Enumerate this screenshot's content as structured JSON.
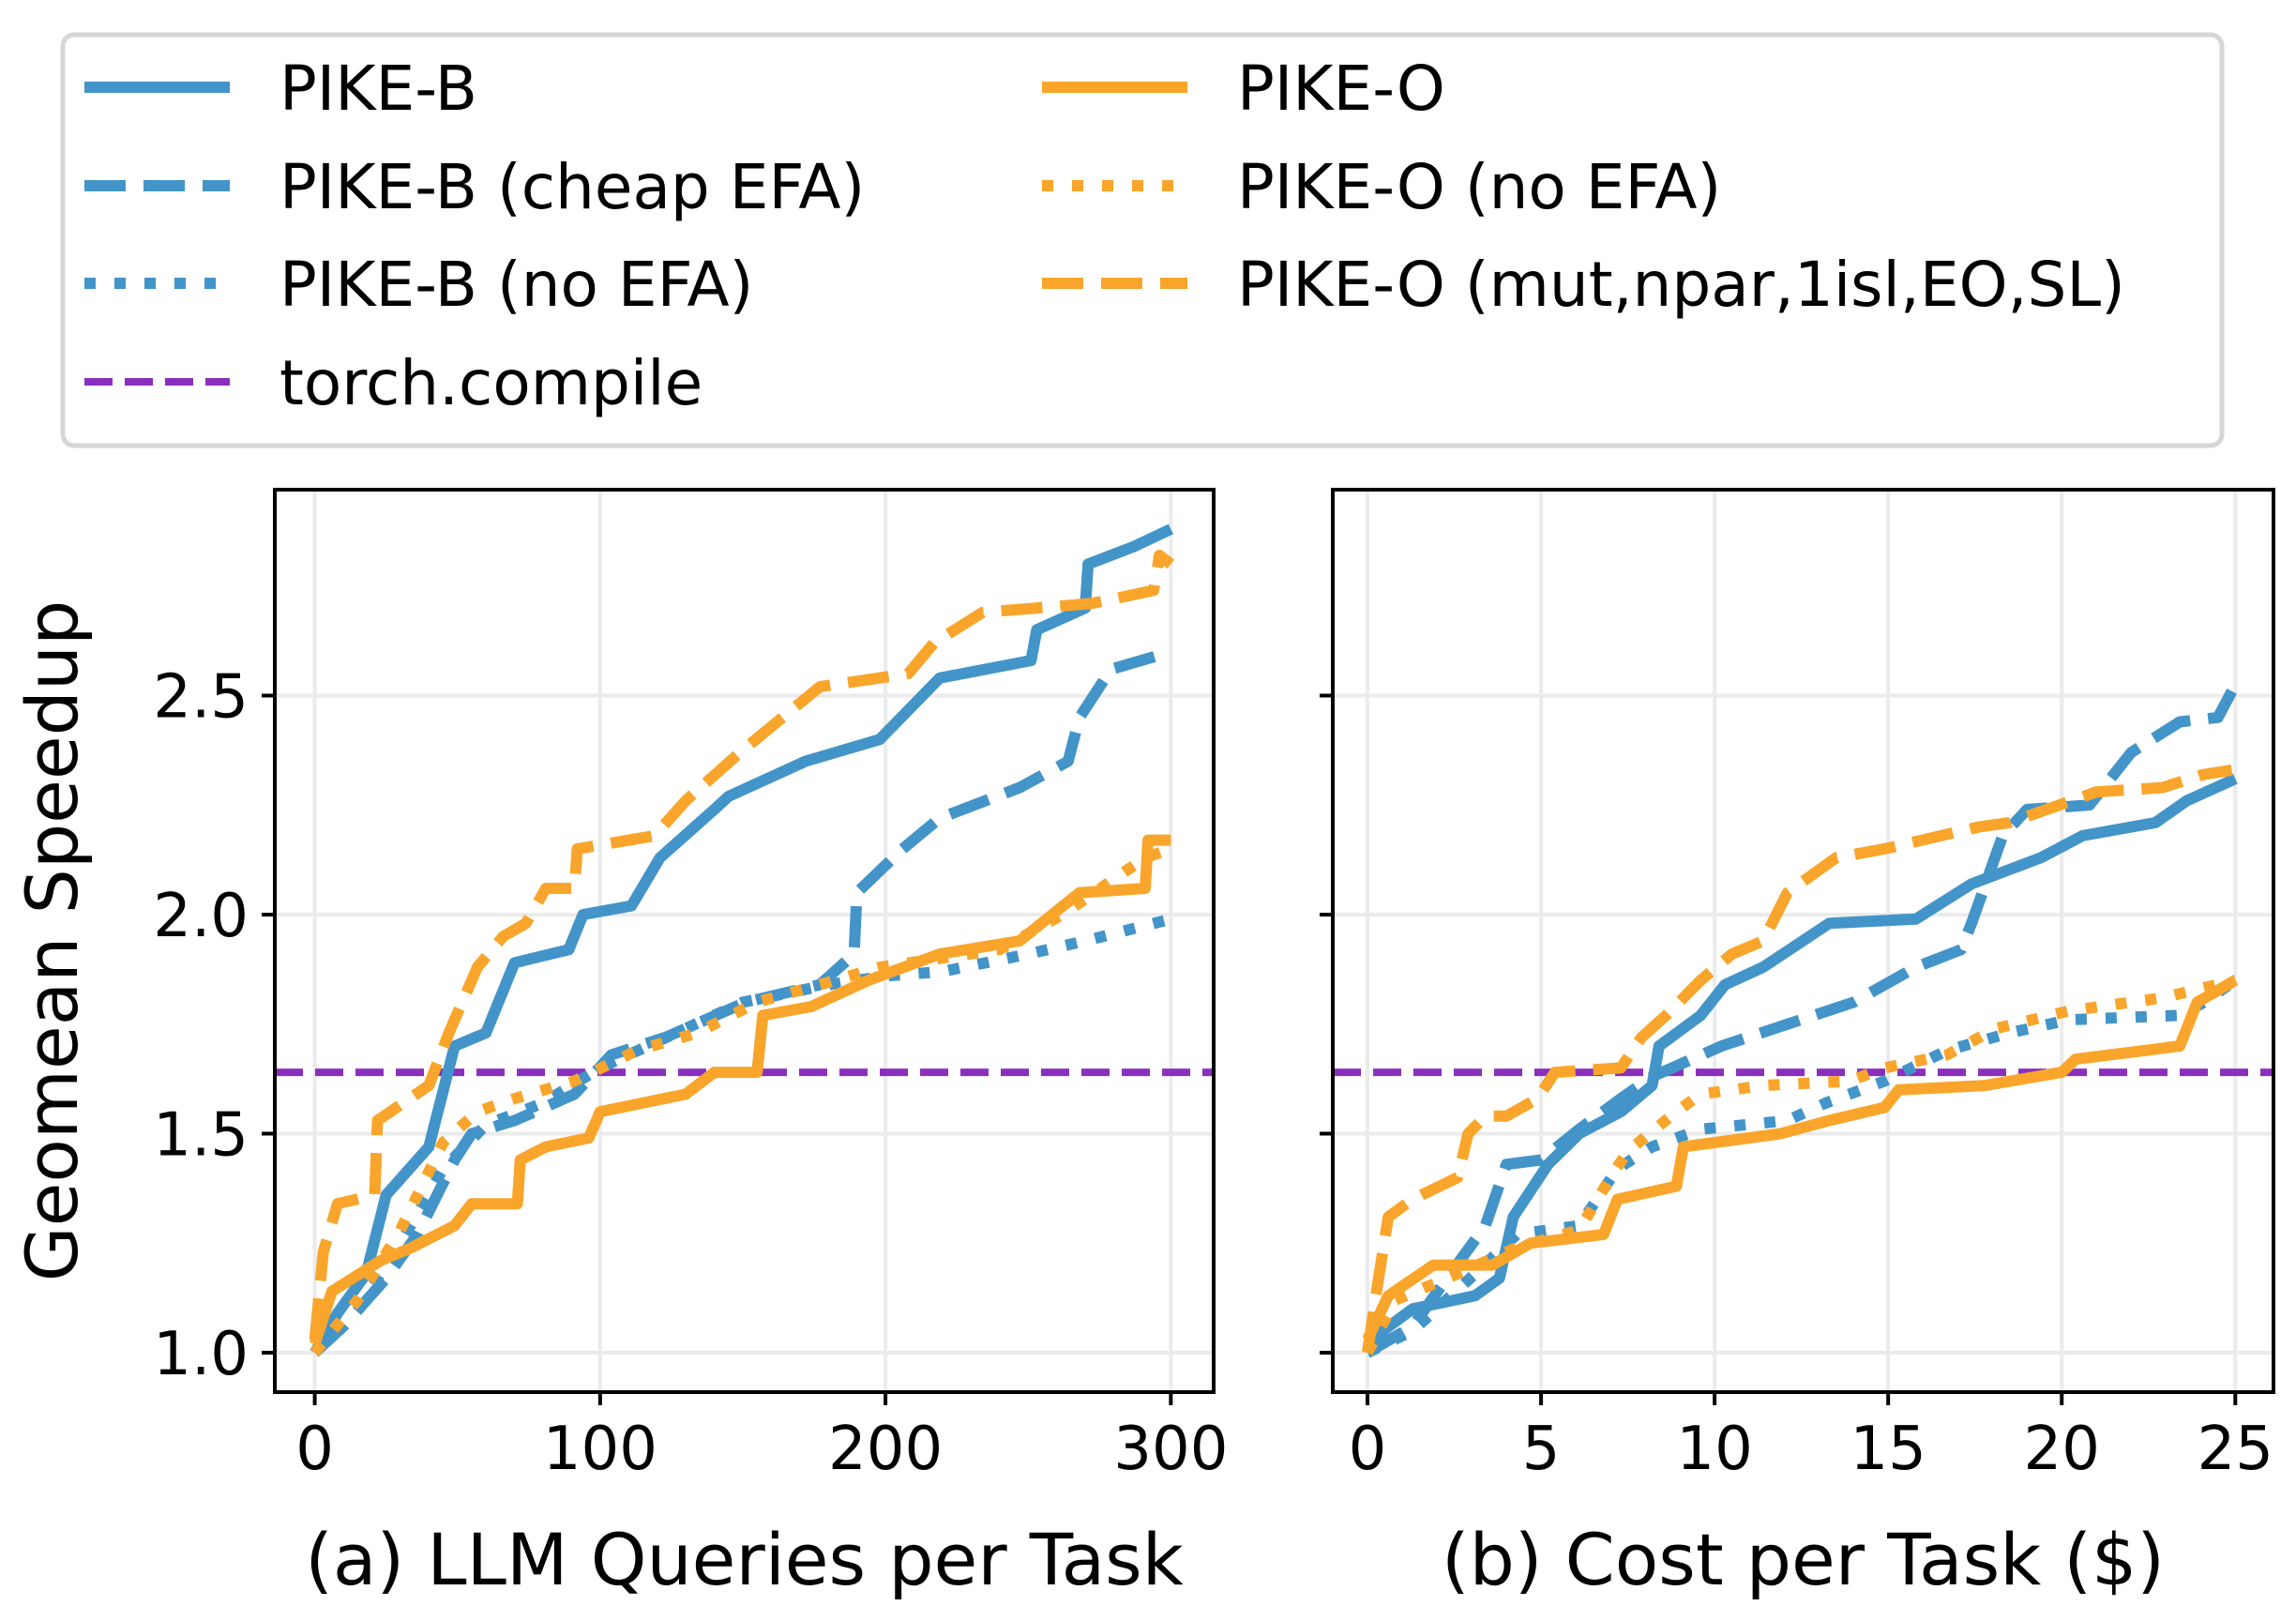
{
  "legend": {
    "placement": "top-outside",
    "items": [
      {
        "name": "PIKE-B",
        "color": "#4394c8",
        "style": "solid"
      },
      {
        "name": "PIKE-B (cheap EFA)",
        "color": "#4394c8",
        "style": "dashed"
      },
      {
        "name": "PIKE-B (no EFA)",
        "color": "#4394c8",
        "style": "dotted"
      },
      {
        "name": "torch.compile",
        "color": "#8a2fbd",
        "style": "dashed-thin"
      },
      {
        "name": "PIKE-O",
        "color": "#f9a52b",
        "style": "solid"
      },
      {
        "name": "PIKE-O (no EFA)",
        "color": "#f9a52b",
        "style": "dotted"
      },
      {
        "name": "PIKE-O (mut,npar,1isl,EO,SL)",
        "color": "#f9a52b",
        "style": "dashed"
      }
    ]
  },
  "chart_data": [
    {
      "type": "line",
      "xlabel": "(a) LLM Queries per Task",
      "ylabel": "Geomean Speedup",
      "xlim": [
        -14,
        315
      ],
      "ylim": [
        0.91,
        2.97
      ],
      "xticks": [
        0,
        100,
        200,
        300
      ],
      "xtick_labels": [
        "0",
        "100",
        "200",
        "300"
      ],
      "yticks": [
        1.0,
        1.5,
        2.0,
        2.5
      ],
      "ytick_labels": [
        "1.0",
        "1.5",
        "2.0",
        "2.5"
      ],
      "grid": true,
      "hlines": [
        {
          "name": "torch.compile",
          "y": 1.64
        }
      ],
      "series": [
        {
          "name": "PIKE-B",
          "points": [
            [
              0,
              1.0
            ],
            [
              8,
              1.09
            ],
            [
              18,
              1.18
            ],
            [
              25,
              1.36
            ],
            [
              40,
              1.47
            ],
            [
              49,
              1.7
            ],
            [
              60,
              1.73
            ],
            [
              70,
              1.89
            ],
            [
              89,
              1.92
            ],
            [
              94,
              2.0
            ],
            [
              111,
              2.02
            ],
            [
              121,
              2.13
            ],
            [
              140,
              2.24
            ],
            [
              145,
              2.27
            ],
            [
              172,
              2.35
            ],
            [
              198,
              2.4
            ],
            [
              219,
              2.54
            ],
            [
              251,
              2.58
            ],
            [
              253,
              2.65
            ],
            [
              270,
              2.7
            ],
            [
              271,
              2.8
            ],
            [
              287,
              2.84
            ],
            [
              300,
              2.88
            ]
          ]
        },
        {
          "name": "PIKE-B (cheap EFA)",
          "points": [
            [
              0,
              1.0
            ],
            [
              10,
              1.06
            ],
            [
              25,
              1.17
            ],
            [
              36,
              1.27
            ],
            [
              49,
              1.44
            ],
            [
              55,
              1.5
            ],
            [
              70,
              1.53
            ],
            [
              91,
              1.59
            ],
            [
              104,
              1.68
            ],
            [
              123,
              1.72
            ],
            [
              151,
              1.8
            ],
            [
              177,
              1.84
            ],
            [
              189,
              1.91
            ],
            [
              190,
              2.05
            ],
            [
              206,
              2.15
            ],
            [
              219,
              2.22
            ],
            [
              247,
              2.29
            ],
            [
              264,
              2.35
            ],
            [
              268,
              2.45
            ],
            [
              279,
              2.56
            ],
            [
              300,
              2.6
            ]
          ]
        },
        {
          "name": "PIKE-B (no EFA)",
          "points": [
            [
              0,
              1.0
            ],
            [
              15,
              1.1
            ],
            [
              30,
              1.25
            ],
            [
              45,
              1.42
            ],
            [
              60,
              1.52
            ],
            [
              80,
              1.57
            ],
            [
              100,
              1.65
            ],
            [
              120,
              1.71
            ],
            [
              150,
              1.8
            ],
            [
              180,
              1.84
            ],
            [
              200,
              1.86
            ],
            [
              220,
              1.87
            ],
            [
              250,
              1.91
            ],
            [
              270,
              1.94
            ],
            [
              300,
              1.99
            ]
          ]
        },
        {
          "name": "PIKE-O",
          "points": [
            [
              0,
              1.02
            ],
            [
              6,
              1.14
            ],
            [
              23,
              1.21
            ],
            [
              34,
              1.24
            ],
            [
              49,
              1.29
            ],
            [
              55,
              1.34
            ],
            [
              71,
              1.34
            ],
            [
              72,
              1.44
            ],
            [
              81,
              1.47
            ],
            [
              96,
              1.49
            ],
            [
              100,
              1.55
            ],
            [
              130,
              1.59
            ],
            [
              140,
              1.64
            ],
            [
              155,
              1.64
            ],
            [
              157,
              1.77
            ],
            [
              174,
              1.79
            ],
            [
              194,
              1.85
            ],
            [
              219,
              1.91
            ],
            [
              247,
              1.94
            ],
            [
              268,
              2.05
            ],
            [
              291,
              2.06
            ],
            [
              292,
              2.17
            ],
            [
              300,
              2.17
            ]
          ]
        },
        {
          "name": "PIKE-O (no EFA)",
          "points": [
            [
              0,
              1.0
            ],
            [
              15,
              1.12
            ],
            [
              30,
              1.28
            ],
            [
              45,
              1.48
            ],
            [
              57,
              1.55
            ],
            [
              70,
              1.58
            ],
            [
              91,
              1.62
            ],
            [
              113,
              1.69
            ],
            [
              134,
              1.73
            ],
            [
              155,
              1.8
            ],
            [
              177,
              1.84
            ],
            [
              198,
              1.88
            ],
            [
              240,
              1.92
            ],
            [
              262,
              2.0
            ],
            [
              291,
              2.13
            ],
            [
              300,
              2.15
            ]
          ]
        },
        {
          "name": "PIKE-O (mut,npar,1isl,EO,SL)",
          "points": [
            [
              0,
              1.03
            ],
            [
              3,
              1.23
            ],
            [
              8,
              1.34
            ],
            [
              21,
              1.36
            ],
            [
              22,
              1.53
            ],
            [
              40,
              1.61
            ],
            [
              47,
              1.73
            ],
            [
              57,
              1.88
            ],
            [
              66,
              1.95
            ],
            [
              74,
              1.98
            ],
            [
              81,
              2.06
            ],
            [
              91,
              2.06
            ],
            [
              92,
              2.15
            ],
            [
              119,
              2.18
            ],
            [
              130,
              2.26
            ],
            [
              149,
              2.37
            ],
            [
              177,
              2.52
            ],
            [
              208,
              2.55
            ],
            [
              217,
              2.62
            ],
            [
              234,
              2.69
            ],
            [
              272,
              2.71
            ],
            [
              294,
              2.74
            ],
            [
              296,
              2.82
            ],
            [
              300,
              2.8
            ]
          ]
        }
      ]
    },
    {
      "type": "line",
      "xlabel": "(b) Cost per Task ($)",
      "ylabel": "",
      "xlim": [
        -1,
        26.1
      ],
      "ylim": [
        0.91,
        2.97
      ],
      "xticks": [
        0,
        5,
        10,
        15,
        20,
        25
      ],
      "xtick_labels": [
        "0",
        "5",
        "10",
        "15",
        "20",
        "25"
      ],
      "yticks": [
        1.0,
        1.5,
        2.0,
        2.5
      ],
      "ytick_labels": [],
      "grid": true,
      "hlines": [
        {
          "name": "torch.compile",
          "y": 1.64
        }
      ],
      "series": [
        {
          "name": "PIKE-B",
          "points": [
            [
              0.1,
              1.03
            ],
            [
              1.3,
              1.1
            ],
            [
              3.1,
              1.13
            ],
            [
              3.8,
              1.17
            ],
            [
              4.2,
              1.31
            ],
            [
              5.2,
              1.43
            ],
            [
              6.1,
              1.5
            ],
            [
              7.3,
              1.55
            ],
            [
              8.2,
              1.61
            ],
            [
              8.4,
              1.7
            ],
            [
              9.6,
              1.77
            ],
            [
              10.3,
              1.84
            ],
            [
              11.4,
              1.88
            ],
            [
              13.3,
              1.98
            ],
            [
              15.8,
              1.99
            ],
            [
              17.4,
              2.07
            ],
            [
              19.4,
              2.13
            ],
            [
              20.6,
              2.18
            ],
            [
              22.7,
              2.21
            ],
            [
              23.6,
              2.26
            ],
            [
              25,
              2.31
            ]
          ]
        },
        {
          "name": "PIKE-B (cheap EFA)",
          "points": [
            [
              0,
              1.0
            ],
            [
              1.3,
              1.06
            ],
            [
              2.2,
              1.16
            ],
            [
              3.4,
              1.29
            ],
            [
              4.0,
              1.43
            ],
            [
              5.0,
              1.44
            ],
            [
              6.1,
              1.51
            ],
            [
              7.3,
              1.58
            ],
            [
              8.2,
              1.63
            ],
            [
              10.2,
              1.7
            ],
            [
              14.0,
              1.8
            ],
            [
              15.8,
              1.88
            ],
            [
              17.1,
              1.92
            ],
            [
              17.4,
              1.98
            ],
            [
              18.3,
              2.18
            ],
            [
              19.0,
              2.24
            ],
            [
              20.8,
              2.25
            ],
            [
              22.0,
              2.37
            ],
            [
              23.4,
              2.44
            ],
            [
              24.5,
              2.45
            ],
            [
              24.9,
              2.51
            ]
          ]
        },
        {
          "name": "PIKE-B (no EFA)",
          "points": [
            [
              0,
              1.0
            ],
            [
              1.3,
              1.05
            ],
            [
              3.1,
              1.18
            ],
            [
              4.3,
              1.27
            ],
            [
              6.1,
              1.29
            ],
            [
              7.2,
              1.42
            ],
            [
              8.2,
              1.47
            ],
            [
              9.6,
              1.51
            ],
            [
              12.1,
              1.53
            ],
            [
              13.2,
              1.57
            ],
            [
              14.9,
              1.62
            ],
            [
              16.7,
              1.69
            ],
            [
              18.5,
              1.73
            ],
            [
              20.2,
              1.76
            ],
            [
              23.4,
              1.77
            ],
            [
              24.1,
              1.8
            ],
            [
              25,
              1.85
            ]
          ]
        },
        {
          "name": "PIKE-O",
          "points": [
            [
              0,
              1.03
            ],
            [
              0.6,
              1.13
            ],
            [
              1.9,
              1.2
            ],
            [
              3.6,
              1.2
            ],
            [
              4.7,
              1.25
            ],
            [
              6.8,
              1.27
            ],
            [
              7.2,
              1.35
            ],
            [
              8.9,
              1.38
            ],
            [
              9.1,
              1.47
            ],
            [
              11.9,
              1.5
            ],
            [
              13.3,
              1.53
            ],
            [
              14.9,
              1.56
            ],
            [
              15.3,
              1.6
            ],
            [
              17.8,
              1.61
            ],
            [
              20.0,
              1.64
            ],
            [
              20.4,
              1.67
            ],
            [
              23.4,
              1.7
            ],
            [
              23.9,
              1.8
            ],
            [
              25,
              1.85
            ]
          ]
        },
        {
          "name": "PIKE-O (no EFA)",
          "points": [
            [
              0,
              1.0
            ],
            [
              0.8,
              1.12
            ],
            [
              2.6,
              1.18
            ],
            [
              4.3,
              1.24
            ],
            [
              6.1,
              1.28
            ],
            [
              7.0,
              1.4
            ],
            [
              7.5,
              1.46
            ],
            [
              8.9,
              1.55
            ],
            [
              9.6,
              1.59
            ],
            [
              11.4,
              1.61
            ],
            [
              13.9,
              1.62
            ],
            [
              14.9,
              1.65
            ],
            [
              16.7,
              1.68
            ],
            [
              18.1,
              1.74
            ],
            [
              20.2,
              1.78
            ],
            [
              22.9,
              1.81
            ],
            [
              25,
              1.85
            ]
          ]
        },
        {
          "name": "PIKE-O (mut,npar,1isl,EO,SL)",
          "points": [
            [
              0,
              1.0
            ],
            [
              0.3,
              1.16
            ],
            [
              0.6,
              1.31
            ],
            [
              1.3,
              1.35
            ],
            [
              2.6,
              1.4
            ],
            [
              2.9,
              1.5
            ],
            [
              3.4,
              1.54
            ],
            [
              4.0,
              1.54
            ],
            [
              4.9,
              1.58
            ],
            [
              5.4,
              1.64
            ],
            [
              7.3,
              1.65
            ],
            [
              7.9,
              1.72
            ],
            [
              8.6,
              1.77
            ],
            [
              9.6,
              1.85
            ],
            [
              10.5,
              1.91
            ],
            [
              11.4,
              1.94
            ],
            [
              12.1,
              2.05
            ],
            [
              13.5,
              2.13
            ],
            [
              14.9,
              2.15
            ],
            [
              17.6,
              2.2
            ],
            [
              18.5,
              2.21
            ],
            [
              21.0,
              2.28
            ],
            [
              22.9,
              2.29
            ],
            [
              24.1,
              2.32
            ],
            [
              24.9,
              2.33
            ]
          ]
        }
      ]
    }
  ]
}
